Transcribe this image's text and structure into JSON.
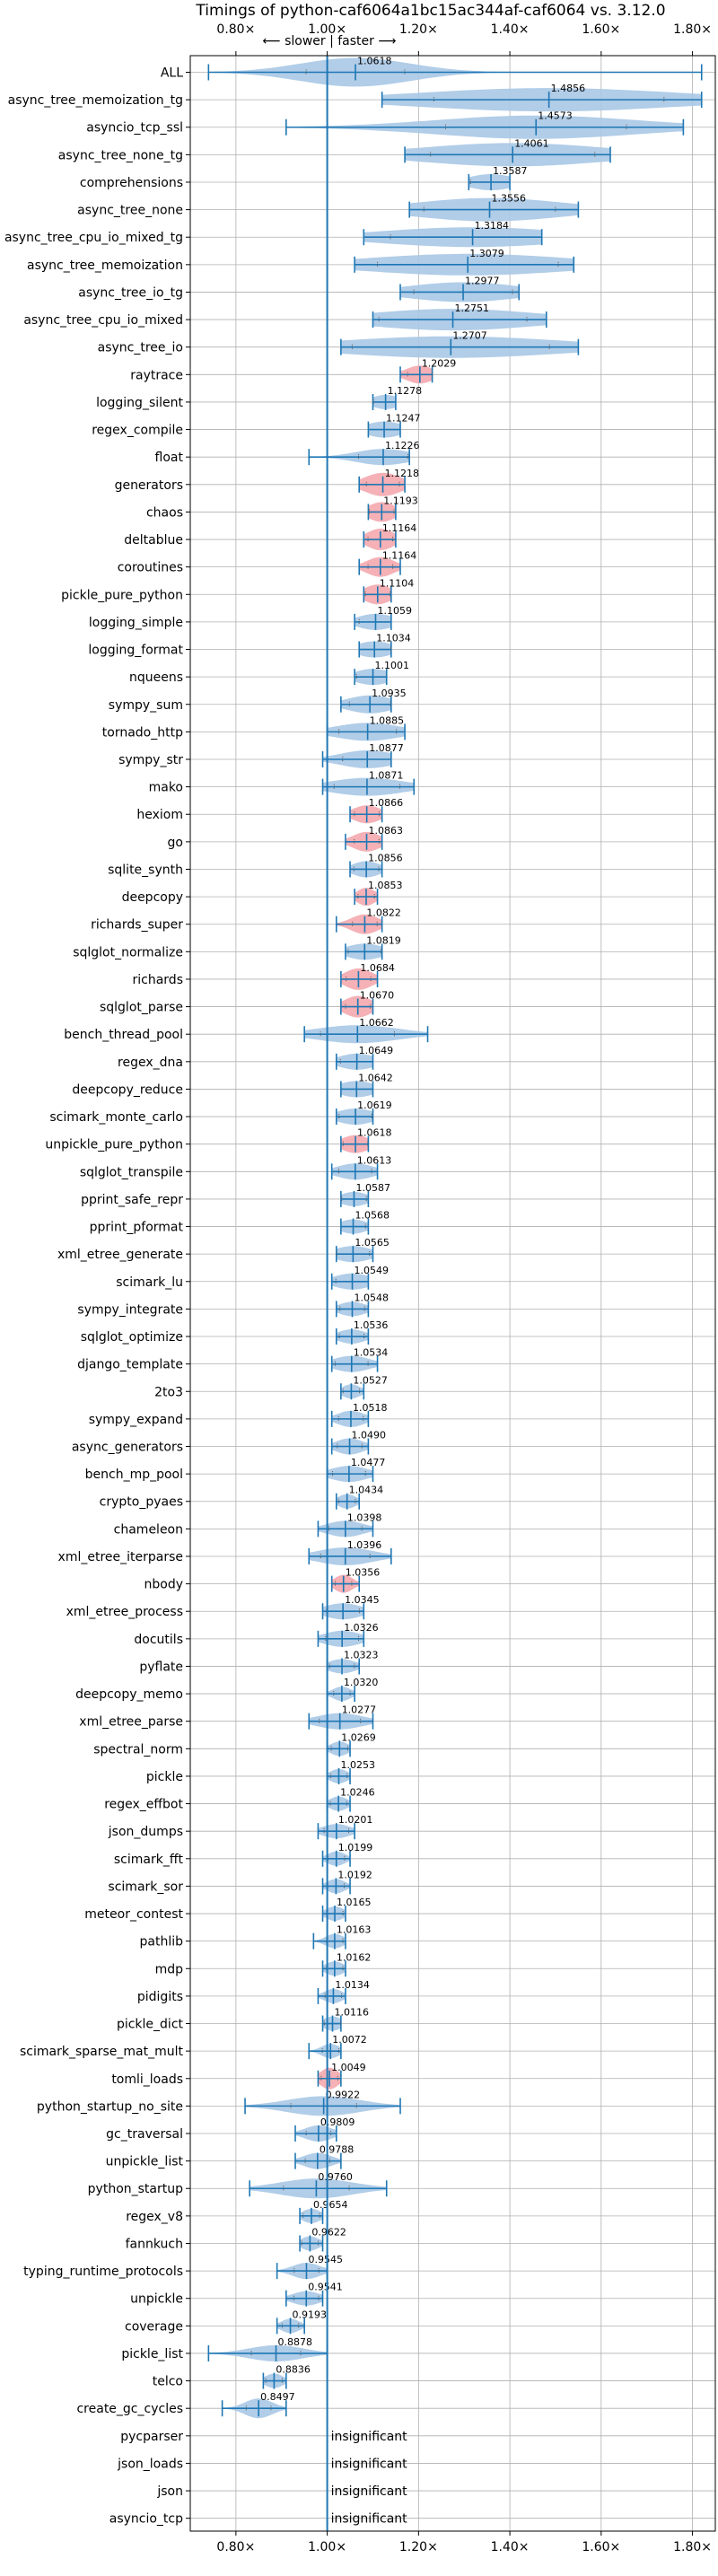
{
  "chart_data": {
    "type": "violin",
    "title": "Timings of python-caf6064a1bc15ac344af-caf6064 vs. 3.12.0",
    "direction_label": "⟵ slower | faster ⟶",
    "xlim": [
      0.7,
      1.85
    ],
    "x_ticks": [
      0.8,
      1.0,
      1.2,
      1.4,
      1.6,
      1.8
    ],
    "x_tick_labels": [
      "0.80×",
      "1.00×",
      "1.20×",
      "1.40×",
      "1.60×",
      "1.80×"
    ],
    "reference_x": 1.0,
    "grid": true,
    "insignificant_label": "insignificant",
    "colors": {
      "violin": "#a9c8e6",
      "violin_highlight": "#f4a8ae",
      "whisker": "#1f77b4",
      "reference_line": "#1f77b4",
      "grid": "#b0b0b0"
    },
    "benchmarks": [
      {
        "name": "ALL",
        "value": 1.0618,
        "value_label": "1.0618",
        "min": 0.74,
        "max": 1.82,
        "spread": 0.12,
        "hw": 16
      },
      {
        "name": "async_tree_memoization_tg",
        "value": 1.4856,
        "value_label": "1.4856",
        "min": 1.12,
        "max": 1.82,
        "spread": 0.28,
        "hw": 13
      },
      {
        "name": "asyncio_tcp_ssl",
        "value": 1.4573,
        "value_label": "1.4573",
        "min": 0.91,
        "max": 1.78,
        "spread": 0.22,
        "hw": 13
      },
      {
        "name": "async_tree_none_tg",
        "value": 1.4061,
        "value_label": "1.4061",
        "min": 1.17,
        "max": 1.62,
        "spread": 0.2,
        "hw": 13
      },
      {
        "name": "comprehensions",
        "value": 1.3587,
        "value_label": "1.3587",
        "min": 1.31,
        "max": 1.4,
        "spread": 0.05,
        "hw": 9
      },
      {
        "name": "async_tree_none",
        "value": 1.3556,
        "value_label": "1.3556",
        "min": 1.18,
        "max": 1.55,
        "spread": 0.16,
        "hw": 13
      },
      {
        "name": "async_tree_cpu_io_mixed_tg",
        "value": 1.3184,
        "value_label": "1.3184",
        "min": 1.08,
        "max": 1.47,
        "spread": 0.2,
        "hw": 11
      },
      {
        "name": "async_tree_memoization",
        "value": 1.3079,
        "value_label": "1.3079",
        "min": 1.06,
        "max": 1.54,
        "spread": 0.22,
        "hw": 12
      },
      {
        "name": "async_tree_io_tg",
        "value": 1.2977,
        "value_label": "1.2977",
        "min": 1.16,
        "max": 1.42,
        "spread": 0.12,
        "hw": 11
      },
      {
        "name": "async_tree_cpu_io_mixed",
        "value": 1.2751,
        "value_label": "1.2751",
        "min": 1.1,
        "max": 1.48,
        "spread": 0.18,
        "hw": 12
      },
      {
        "name": "async_tree_io",
        "value": 1.2707,
        "value_label": "1.2707",
        "min": 1.03,
        "max": 1.55,
        "spread": 0.24,
        "hw": 12
      },
      {
        "name": "raytrace",
        "value": 1.2029,
        "value_label": "1.2029",
        "min": 1.16,
        "max": 1.23,
        "spread": 0.03,
        "hw": 10,
        "highlight": true
      },
      {
        "name": "logging_silent",
        "value": 1.1278,
        "value_label": "1.1278",
        "min": 1.1,
        "max": 1.15,
        "spread": 0.03,
        "hw": 8
      },
      {
        "name": "regex_compile",
        "value": 1.1247,
        "value_label": "1.1247",
        "min": 1.09,
        "max": 1.16,
        "spread": 0.04,
        "hw": 9
      },
      {
        "name": "float",
        "value": 1.1226,
        "value_label": "1.1226",
        "min": 0.96,
        "max": 1.18,
        "spread": 0.06,
        "hw": 9
      },
      {
        "name": "generators",
        "value": 1.1218,
        "value_label": "1.1218",
        "min": 1.07,
        "max": 1.17,
        "spread": 0.04,
        "hw": 13,
        "highlight": true
      },
      {
        "name": "chaos",
        "value": 1.1193,
        "value_label": "1.1193",
        "min": 1.09,
        "max": 1.15,
        "spread": 0.03,
        "hw": 11,
        "highlight": true
      },
      {
        "name": "deltablue",
        "value": 1.1164,
        "value_label": "1.1164",
        "min": 1.08,
        "max": 1.15,
        "spread": 0.03,
        "hw": 12,
        "highlight": true
      },
      {
        "name": "coroutines",
        "value": 1.1164,
        "value_label": "1.1164",
        "min": 1.07,
        "max": 1.16,
        "spread": 0.03,
        "hw": 11,
        "highlight": true
      },
      {
        "name": "pickle_pure_python",
        "value": 1.1104,
        "value_label": "1.1104",
        "min": 1.08,
        "max": 1.14,
        "spread": 0.03,
        "hw": 11,
        "highlight": true
      },
      {
        "name": "logging_simple",
        "value": 1.1059,
        "value_label": "1.1059",
        "min": 1.06,
        "max": 1.14,
        "spread": 0.04,
        "hw": 9
      },
      {
        "name": "logging_format",
        "value": 1.1034,
        "value_label": "1.1034",
        "min": 1.07,
        "max": 1.14,
        "spread": 0.04,
        "hw": 9
      },
      {
        "name": "nqueens",
        "value": 1.1001,
        "value_label": "1.1001",
        "min": 1.06,
        "max": 1.13,
        "spread": 0.04,
        "hw": 9
      },
      {
        "name": "sympy_sum",
        "value": 1.0935,
        "value_label": "1.0935",
        "min": 1.03,
        "max": 1.14,
        "spread": 0.05,
        "hw": 10
      },
      {
        "name": "tornado_http",
        "value": 1.0885,
        "value_label": "1.0885",
        "min": 1.0,
        "max": 1.17,
        "spread": 0.07,
        "hw": 10
      },
      {
        "name": "sympy_str",
        "value": 1.0877,
        "value_label": "1.0877",
        "min": 0.99,
        "max": 1.14,
        "spread": 0.06,
        "hw": 10
      },
      {
        "name": "mako",
        "value": 1.0871,
        "value_label": "1.0871",
        "min": 0.99,
        "max": 1.19,
        "spread": 0.08,
        "hw": 10
      },
      {
        "name": "hexiom",
        "value": 1.0866,
        "value_label": "1.0866",
        "min": 1.05,
        "max": 1.12,
        "spread": 0.03,
        "hw": 10,
        "highlight": true
      },
      {
        "name": "go",
        "value": 1.0863,
        "value_label": "1.0863",
        "min": 1.04,
        "max": 1.12,
        "spread": 0.03,
        "hw": 11,
        "highlight": true
      },
      {
        "name": "sqlite_synth",
        "value": 1.0856,
        "value_label": "1.0856",
        "min": 1.05,
        "max": 1.12,
        "spread": 0.03,
        "hw": 9
      },
      {
        "name": "deepcopy",
        "value": 1.0853,
        "value_label": "1.0853",
        "min": 1.06,
        "max": 1.11,
        "spread": 0.02,
        "hw": 10,
        "highlight": true
      },
      {
        "name": "richards_super",
        "value": 1.0822,
        "value_label": "1.0822",
        "min": 1.02,
        "max": 1.12,
        "spread": 0.03,
        "hw": 11,
        "highlight": true
      },
      {
        "name": "sqlglot_normalize",
        "value": 1.0819,
        "value_label": "1.0819",
        "min": 1.04,
        "max": 1.12,
        "spread": 0.04,
        "hw": 9
      },
      {
        "name": "richards",
        "value": 1.0684,
        "value_label": "1.0684",
        "min": 1.03,
        "max": 1.11,
        "spread": 0.03,
        "hw": 12,
        "highlight": true
      },
      {
        "name": "sqlglot_parse",
        "value": 1.067,
        "value_label": "1.0670",
        "min": 1.03,
        "max": 1.1,
        "spread": 0.03,
        "hw": 12,
        "highlight": true
      },
      {
        "name": "bench_thread_pool",
        "value": 1.0662,
        "value_label": "1.0662",
        "min": 0.95,
        "max": 1.22,
        "spread": 0.09,
        "hw": 10
      },
      {
        "name": "regex_dna",
        "value": 1.0649,
        "value_label": "1.0649",
        "min": 1.02,
        "max": 1.1,
        "spread": 0.04,
        "hw": 9
      },
      {
        "name": "deepcopy_reduce",
        "value": 1.0642,
        "value_label": "1.0642",
        "min": 1.03,
        "max": 1.1,
        "spread": 0.04,
        "hw": 9
      },
      {
        "name": "scimark_monte_carlo",
        "value": 1.0619,
        "value_label": "1.0619",
        "min": 1.02,
        "max": 1.1,
        "spread": 0.04,
        "hw": 9
      },
      {
        "name": "unpickle_pure_python",
        "value": 1.0618,
        "value_label": "1.0618",
        "min": 1.03,
        "max": 1.09,
        "spread": 0.03,
        "hw": 10,
        "highlight": true
      },
      {
        "name": "sqlglot_transpile",
        "value": 1.0613,
        "value_label": "1.0613",
        "min": 1.01,
        "max": 1.11,
        "spread": 0.04,
        "hw": 9
      },
      {
        "name": "pprint_safe_repr",
        "value": 1.0587,
        "value_label": "1.0587",
        "min": 1.03,
        "max": 1.09,
        "spread": 0.03,
        "hw": 8
      },
      {
        "name": "pprint_pformat",
        "value": 1.0568,
        "value_label": "1.0568",
        "min": 1.03,
        "max": 1.09,
        "spread": 0.03,
        "hw": 8
      },
      {
        "name": "xml_etree_generate",
        "value": 1.0565,
        "value_label": "1.0565",
        "min": 1.02,
        "max": 1.1,
        "spread": 0.04,
        "hw": 9
      },
      {
        "name": "scimark_lu",
        "value": 1.0549,
        "value_label": "1.0549",
        "min": 1.01,
        "max": 1.09,
        "spread": 0.04,
        "hw": 9
      },
      {
        "name": "sympy_integrate",
        "value": 1.0548,
        "value_label": "1.0548",
        "min": 1.02,
        "max": 1.09,
        "spread": 0.03,
        "hw": 8
      },
      {
        "name": "sqlglot_optimize",
        "value": 1.0536,
        "value_label": "1.0536",
        "min": 1.02,
        "max": 1.09,
        "spread": 0.03,
        "hw": 8
      },
      {
        "name": "django_template",
        "value": 1.0534,
        "value_label": "1.0534",
        "min": 1.01,
        "max": 1.11,
        "spread": 0.04,
        "hw": 9
      },
      {
        "name": "2to3",
        "value": 1.0527,
        "value_label": "1.0527",
        "min": 1.03,
        "max": 1.08,
        "spread": 0.02,
        "hw": 8
      },
      {
        "name": "sympy_expand",
        "value": 1.0518,
        "value_label": "1.0518",
        "min": 1.01,
        "max": 1.09,
        "spread": 0.03,
        "hw": 9
      },
      {
        "name": "async_generators",
        "value": 1.049,
        "value_label": "1.0490",
        "min": 1.01,
        "max": 1.09,
        "spread": 0.03,
        "hw": 9
      },
      {
        "name": "bench_mp_pool",
        "value": 1.0477,
        "value_label": "1.0477",
        "min": 1.0,
        "max": 1.1,
        "spread": 0.04,
        "hw": 9
      },
      {
        "name": "crypto_pyaes",
        "value": 1.0434,
        "value_label": "1.0434",
        "min": 1.02,
        "max": 1.07,
        "spread": 0.02,
        "hw": 8
      },
      {
        "name": "chameleon",
        "value": 1.0398,
        "value_label": "1.0398",
        "min": 0.98,
        "max": 1.1,
        "spread": 0.04,
        "hw": 9
      },
      {
        "name": "xml_etree_iterparse",
        "value": 1.0396,
        "value_label": "1.0396",
        "min": 0.96,
        "max": 1.14,
        "spread": 0.06,
        "hw": 10
      },
      {
        "name": "nbody",
        "value": 1.0356,
        "value_label": "1.0356",
        "min": 1.01,
        "max": 1.07,
        "spread": 0.02,
        "hw": 10,
        "highlight": true
      },
      {
        "name": "xml_etree_process",
        "value": 1.0345,
        "value_label": "1.0345",
        "min": 0.99,
        "max": 1.08,
        "spread": 0.04,
        "hw": 9
      },
      {
        "name": "docutils",
        "value": 1.0326,
        "value_label": "1.0326",
        "min": 0.98,
        "max": 1.08,
        "spread": 0.04,
        "hw": 9
      },
      {
        "name": "pyflate",
        "value": 1.0323,
        "value_label": "1.0323",
        "min": 1.0,
        "max": 1.07,
        "spread": 0.03,
        "hw": 8
      },
      {
        "name": "deepcopy_memo",
        "value": 1.032,
        "value_label": "1.0320",
        "min": 1.0,
        "max": 1.06,
        "spread": 0.02,
        "hw": 8
      },
      {
        "name": "xml_etree_parse",
        "value": 1.0277,
        "value_label": "1.0277",
        "min": 0.96,
        "max": 1.1,
        "spread": 0.05,
        "hw": 9
      },
      {
        "name": "spectral_norm",
        "value": 1.0269,
        "value_label": "1.0269",
        "min": 1.0,
        "max": 1.05,
        "spread": 0.02,
        "hw": 8
      },
      {
        "name": "pickle",
        "value": 1.0253,
        "value_label": "1.0253",
        "min": 1.0,
        "max": 1.05,
        "spread": 0.02,
        "hw": 8
      },
      {
        "name": "regex_effbot",
        "value": 1.0246,
        "value_label": "1.0246",
        "min": 1.0,
        "max": 1.05,
        "spread": 0.02,
        "hw": 8
      },
      {
        "name": "json_dumps",
        "value": 1.0201,
        "value_label": "1.0201",
        "min": 0.98,
        "max": 1.06,
        "spread": 0.03,
        "hw": 8
      },
      {
        "name": "scimark_fft",
        "value": 1.0199,
        "value_label": "1.0199",
        "min": 0.99,
        "max": 1.05,
        "spread": 0.02,
        "hw": 8
      },
      {
        "name": "scimark_sor",
        "value": 1.0192,
        "value_label": "1.0192",
        "min": 0.99,
        "max": 1.05,
        "spread": 0.02,
        "hw": 8
      },
      {
        "name": "meteor_contest",
        "value": 1.0165,
        "value_label": "1.0165",
        "min": 0.99,
        "max": 1.04,
        "spread": 0.02,
        "hw": 8
      },
      {
        "name": "pathlib",
        "value": 1.0163,
        "value_label": "1.0163",
        "min": 0.97,
        "max": 1.04,
        "spread": 0.02,
        "hw": 8
      },
      {
        "name": "mdp",
        "value": 1.0162,
        "value_label": "1.0162",
        "min": 0.99,
        "max": 1.04,
        "spread": 0.02,
        "hw": 8
      },
      {
        "name": "pidigits",
        "value": 1.0134,
        "value_label": "1.0134",
        "min": 0.98,
        "max": 1.04,
        "spread": 0.02,
        "hw": 8
      },
      {
        "name": "pickle_dict",
        "value": 1.0116,
        "value_label": "1.0116",
        "min": 0.99,
        "max": 1.03,
        "spread": 0.02,
        "hw": 8
      },
      {
        "name": "scimark_sparse_mat_mult",
        "value": 1.0072,
        "value_label": "1.0072",
        "min": 0.96,
        "max": 1.03,
        "spread": 0.02,
        "hw": 8
      },
      {
        "name": "tomli_loads",
        "value": 1.0049,
        "value_label": "1.0049",
        "min": 0.98,
        "max": 1.03,
        "spread": 0.02,
        "hw": 12,
        "highlight": true
      },
      {
        "name": "python_startup_no_site",
        "value": 0.9922,
        "value_label": "0.9922",
        "min": 0.82,
        "max": 1.16,
        "spread": 0.08,
        "hw": 11
      },
      {
        "name": "gc_traversal",
        "value": 0.9809,
        "value_label": "0.9809",
        "min": 0.93,
        "max": 1.02,
        "spread": 0.03,
        "hw": 9
      },
      {
        "name": "unpickle_list",
        "value": 0.9788,
        "value_label": "0.9788",
        "min": 0.93,
        "max": 1.03,
        "spread": 0.03,
        "hw": 9
      },
      {
        "name": "python_startup",
        "value": 0.976,
        "value_label": "0.9760",
        "min": 0.83,
        "max": 1.13,
        "spread": 0.08,
        "hw": 11
      },
      {
        "name": "regex_v8",
        "value": 0.9654,
        "value_label": "0.9654",
        "min": 0.94,
        "max": 0.99,
        "spread": 0.02,
        "hw": 8
      },
      {
        "name": "fannkuch",
        "value": 0.9622,
        "value_label": "0.9622",
        "min": 0.94,
        "max": 0.99,
        "spread": 0.02,
        "hw": 8
      },
      {
        "name": "typing_runtime_protocols",
        "value": 0.9545,
        "value_label": "0.9545",
        "min": 0.89,
        "max": 1.0,
        "spread": 0.03,
        "hw": 9
      },
      {
        "name": "unpickle",
        "value": 0.9541,
        "value_label": "0.9541",
        "min": 0.91,
        "max": 0.99,
        "spread": 0.03,
        "hw": 8
      },
      {
        "name": "coverage",
        "value": 0.9193,
        "value_label": "0.9193",
        "min": 0.89,
        "max": 0.95,
        "spread": 0.02,
        "hw": 8
      },
      {
        "name": "pickle_list",
        "value": 0.8878,
        "value_label": "0.8878",
        "min": 0.74,
        "max": 1.0,
        "spread": 0.06,
        "hw": 9
      },
      {
        "name": "telco",
        "value": 0.8836,
        "value_label": "0.8836",
        "min": 0.86,
        "max": 0.91,
        "spread": 0.02,
        "hw": 8
      },
      {
        "name": "create_gc_cycles",
        "value": 0.8497,
        "value_label": "0.8497",
        "min": 0.77,
        "max": 0.91,
        "spread": 0.03,
        "hw": 11
      },
      {
        "name": "pycparser",
        "insignificant": true
      },
      {
        "name": "json_loads",
        "insignificant": true
      },
      {
        "name": "json",
        "insignificant": true
      },
      {
        "name": "asyncio_tcp",
        "insignificant": true
      }
    ]
  }
}
